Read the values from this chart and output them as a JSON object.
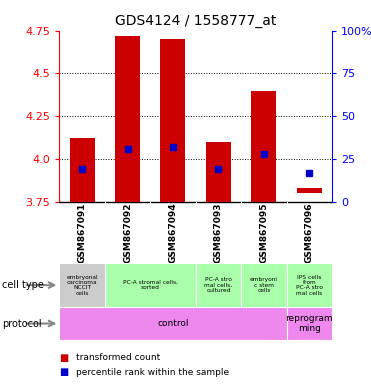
{
  "title": "GDS4124 / 1558777_at",
  "samples": [
    "GSM867091",
    "GSM867092",
    "GSM867094",
    "GSM867093",
    "GSM867095",
    "GSM867096"
  ],
  "bar_bottom": [
    3.75,
    3.75,
    3.75,
    3.75,
    3.75,
    3.8
  ],
  "bar_top": [
    4.12,
    4.72,
    4.7,
    4.1,
    4.4,
    3.83
  ],
  "percentile_y": [
    3.94,
    4.06,
    4.07,
    3.94,
    4.03,
    3.92
  ],
  "ylim_left": [
    3.75,
    4.75
  ],
  "ylim_right": [
    0,
    100
  ],
  "yticks_left": [
    3.75,
    4.0,
    4.25,
    4.5,
    4.75
  ],
  "yticks_right": [
    0,
    25,
    50,
    75,
    100
  ],
  "ytick_labels_right": [
    "0",
    "25",
    "50",
    "75",
    "100%"
  ],
  "dotted_lines": [
    4.0,
    4.25,
    4.5
  ],
  "bar_color": "#cc0000",
  "dot_color": "#0000cc",
  "bar_width": 0.55,
  "cell_types_info": [
    [
      0,
      1,
      "#cccccc",
      "embryonal\ncarcinoma\nNCCIT\ncells"
    ],
    [
      1,
      3,
      "#aaffaa",
      "PC-A stromal cells,\nsorted"
    ],
    [
      3,
      4,
      "#aaffaa",
      "PC-A stro\nmal cells,\ncultured"
    ],
    [
      4,
      5,
      "#aaffaa",
      "embryoni\nc stem\ncells"
    ],
    [
      5,
      6,
      "#aaffaa",
      "IPS cells\nfrom\nPC-A stro\nmal cells"
    ]
  ],
  "proto_info": [
    [
      0,
      5,
      "#ee88ee",
      "control"
    ],
    [
      5,
      6,
      "#ee88ee",
      "reprogram\nming"
    ]
  ],
  "sample_bg": "#cccccc",
  "plot_bg": "#ffffff",
  "legend_items": [
    {
      "label": "transformed count",
      "color": "#cc0000"
    },
    {
      "label": "percentile rank within the sample",
      "color": "#0000cc"
    }
  ]
}
